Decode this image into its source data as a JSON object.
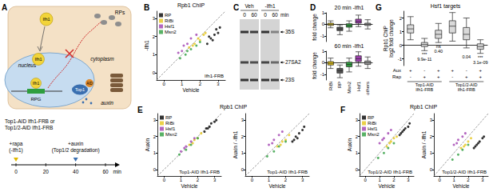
{
  "diagram": {
    "panel": "A",
    "cytoplasm": "cytoplasm",
    "nucleus": "nucleus",
    "ifh1": "Ifh1",
    "rps": "RPs",
    "rpg": "RPG",
    "aid": "AID",
    "top1": "Top1",
    "auxin": "auxin",
    "strains": [
      "Top1-AID Ifh1-FRB or",
      "Top1/2-AID Ifh1-FRB"
    ],
    "timeline": {
      "ticks": [
        0,
        20,
        40,
        60
      ],
      "unit": "min",
      "events": [
        {
          "at": 0,
          "lines": [
            "+rapa",
            "(-Ifh1)"
          ]
        },
        {
          "at": 40,
          "lines": [
            "+auxin",
            "(Top1/2 degradation)"
          ]
        }
      ]
    }
  },
  "gel": {
    "panel": "C",
    "conditions": [
      "Veh",
      "-Ifh1"
    ],
    "lanes": [
      0,
      60
    ],
    "unit": "min",
    "bands": [
      "35S",
      "27SA2",
      "23S"
    ]
  },
  "chart_data": [
    {
      "panel": "B",
      "type": "scatter",
      "title": "Rpb1 ChIP",
      "xlabel": "Vehicle",
      "ylabel": "-Ifh1",
      "annotation": "Ifh1-FRB",
      "xlim": [
        -0.4,
        3.4
      ],
      "ylim": [
        -0.4,
        3.4
      ],
      "xticks": [
        0,
        1,
        2,
        3
      ],
      "yticks": [
        0,
        1,
        2,
        3
      ],
      "legend": "top-left",
      "series": [
        {
          "name": "RP",
          "color": "#000000",
          "values": [
            [
              2.4,
              1.6
            ],
            [
              2.6,
              1.9
            ],
            [
              2.8,
              2.1
            ],
            [
              2.9,
              2.4
            ],
            [
              3.1,
              2.5
            ],
            [
              2.7,
              1.8
            ],
            [
              3.0,
              2.2
            ],
            [
              2.5,
              2.0
            ]
          ]
        },
        {
          "name": "RiBi",
          "color": "#e6c619",
          "values": [
            [
              1.4,
              1.4
            ],
            [
              1.7,
              1.6
            ],
            [
              1.9,
              1.9
            ],
            [
              2.0,
              1.8
            ],
            [
              2.2,
              2.1
            ],
            [
              1.6,
              1.5
            ],
            [
              2.3,
              2.2
            ]
          ]
        },
        {
          "name": "Hsf1",
          "color": "#a040b0",
          "values": [
            [
              0.8,
              1.1
            ],
            [
              1.1,
              1.5
            ],
            [
              1.3,
              1.6
            ],
            [
              1.5,
              1.9
            ],
            [
              1.0,
              1.2
            ],
            [
              1.8,
              2.1
            ]
          ]
        },
        {
          "name": "Msn2",
          "color": "#2e9e3e",
          "values": [
            [
              0.9,
              0.8
            ],
            [
              1.2,
              1.0
            ],
            [
              1.5,
              1.3
            ],
            [
              1.8,
              1.5
            ],
            [
              2.0,
              1.7
            ],
            [
              1.3,
              1.2
            ]
          ]
        }
      ]
    },
    {
      "panel": "D",
      "type": "boxplot",
      "title": "20 min -Ifh1",
      "ylabel": "fold change",
      "categories": [
        "RiBi",
        "RP",
        "Msn2",
        "Hsf1",
        "others"
      ],
      "values": [
        [
          -0.3,
          -0.1,
          0,
          0.1,
          0.3
        ],
        [
          -0.9,
          -0.55,
          -0.4,
          -0.25,
          -0.05
        ],
        [
          -0.6,
          -0.25,
          -0.1,
          0.05,
          0.3
        ],
        [
          -0.2,
          0.1,
          0.25,
          0.45,
          0.8
        ],
        [
          -0.4,
          -0.1,
          0,
          0.1,
          0.4
        ]
      ],
      "colors": [
        "#e6c619",
        "#555555",
        "#2e9e3e",
        "#a040b0",
        "#9e9e9e"
      ],
      "ylim": [
        -1.5,
        1
      ],
      "yticks": [
        -1,
        0,
        1
      ],
      "tick_labels": "y"
    },
    {
      "type": "boxplot",
      "title": "60 min -Ifh1",
      "ylabel": "fold change",
      "categories": [
        "RiBi",
        "RP",
        "Msn2",
        "Hsf1",
        "others"
      ],
      "values": [
        [
          -0.5,
          -0.2,
          -0.05,
          0.1,
          0.4
        ],
        [
          -1.3,
          -0.9,
          -0.7,
          -0.5,
          -0.2
        ],
        [
          -0.8,
          -0.35,
          -0.15,
          0.05,
          0.4
        ],
        [
          -0.3,
          0.1,
          0.35,
          0.6,
          0.95
        ],
        [
          -0.5,
          -0.15,
          0,
          0.15,
          0.5
        ]
      ],
      "colors": [
        "#e6c619",
        "#555555",
        "#2e9e3e",
        "#a040b0",
        "#9e9e9e"
      ],
      "ylim": [
        -1.5,
        1
      ],
      "yticks": [
        -1,
        0,
        1
      ]
    },
    {
      "panel": "G",
      "type": "boxplot",
      "title": "Hsf1 targets",
      "ylabel": [
        "Rpb1 ChIP",
        "log2 fold change"
      ],
      "categories": [
        null,
        null,
        null,
        null,
        null,
        null
      ],
      "values": [
        [
          0.4,
          0.9,
          1.2,
          1.5,
          2.1
        ],
        [
          -0.4,
          -0.1,
          0.05,
          0.2,
          0.5
        ],
        [
          0.2,
          0.5,
          0.8,
          1.1,
          1.6
        ],
        [
          0.3,
          0.9,
          1.4,
          1.8,
          2.4
        ],
        [
          -0.2,
          0.4,
          0.8,
          1.3,
          2.0
        ],
        [
          -0.6,
          -0.3,
          -0.1,
          0.1,
          0.4
        ]
      ],
      "color": "#d9d9d9",
      "ylim": [
        -1.5,
        2.5
      ],
      "yticks": [
        -1,
        0,
        1,
        2
      ],
      "tick_labels": "y",
      "significance": [
        null,
        "***",
        "ns",
        null,
        null,
        "***"
      ],
      "p_values": [
        null,
        "9.9e-11",
        "0.40",
        null,
        "0.04",
        "3.1e-09"
      ],
      "conditions": [
        {
          "label": "Aux",
          "values": [
            "+",
            "-",
            "+",
            "+",
            "-",
            "+"
          ]
        },
        {
          "label": "Rap",
          "values": [
            "-",
            "+",
            "+",
            "-",
            "+",
            "+"
          ]
        }
      ],
      "groups": [
        {
          "label": [
            "Top1-AID",
            "Ifh1-FRB"
          ],
          "from": 0,
          "to": 2
        },
        {
          "label": [
            "Top1/2-AID",
            "Ifh1-FRB"
          ],
          "from": 3,
          "to": 5
        }
      ]
    },
    {
      "panel": "E",
      "type": "scatter",
      "title": "Rpb1 ChIP",
      "xlabel": "Vehicle",
      "ylabel": "Auxin",
      "annotation": "Top1-AID Ifh1-FRB",
      "xlim": [
        -0.4,
        3.4
      ],
      "ylim": [
        -0.4,
        3.4
      ],
      "xticks": [
        0,
        1,
        2,
        3
      ],
      "yticks": [
        0,
        1,
        2,
        3
      ],
      "legend": "top-left",
      "series": [
        {
          "name": "RP",
          "color": "#000000",
          "values": [
            [
              2.4,
              2.3
            ],
            [
              2.6,
              2.5
            ],
            [
              2.8,
              2.8
            ],
            [
              3.0,
              2.9
            ],
            [
              2.7,
              2.6
            ],
            [
              3.1,
              3.0
            ],
            [
              2.5,
              2.5
            ]
          ]
        },
        {
          "name": "RiBi",
          "color": "#e6c619",
          "values": [
            [
              1.5,
              1.5
            ],
            [
              1.8,
              1.8
            ],
            [
              2.0,
              1.9
            ],
            [
              2.2,
              2.2
            ],
            [
              1.7,
              1.6
            ]
          ]
        },
        {
          "name": "Hsf1",
          "color": "#a040b0",
          "values": [
            [
              1.0,
              1.1
            ],
            [
              1.3,
              1.4
            ],
            [
              1.6,
              1.7
            ],
            [
              1.2,
              1.3
            ],
            [
              1.8,
              1.9
            ]
          ]
        },
        {
          "name": "Msn2",
          "color": "#2e9e3e",
          "values": [
            [
              0.9,
              0.9
            ],
            [
              1.3,
              1.2
            ],
            [
              1.6,
              1.5
            ],
            [
              2.0,
              1.9
            ]
          ]
        }
      ]
    },
    {
      "type": "scatter",
      "xlabel": "Vehicle",
      "ylabel": "Auxin / -Ifh1",
      "annotation": "Top1-AID Ifh1-FRB",
      "xlim": [
        -0.4,
        3.4
      ],
      "ylim": [
        -0.4,
        3.4
      ],
      "xticks": [
        0,
        1,
        2,
        3
      ],
      "yticks": [
        0,
        1,
        2,
        3
      ],
      "series": [
        {
          "name": "RP",
          "color": "#000000",
          "values": [
            [
              2.4,
              1.7
            ],
            [
              2.6,
              2.0
            ],
            [
              2.8,
              2.2
            ],
            [
              3.0,
              2.4
            ],
            [
              2.7,
              1.9
            ],
            [
              3.1,
              2.6
            ],
            [
              2.5,
              1.8
            ]
          ]
        },
        {
          "name": "RiBi",
          "color": "#e6c619",
          "values": [
            [
              1.5,
              1.4
            ],
            [
              1.8,
              1.7
            ],
            [
              2.0,
              1.8
            ],
            [
              2.2,
              2.1
            ],
            [
              1.7,
              1.5
            ]
          ]
        },
        {
          "name": "Hsf1",
          "color": "#a040b0",
          "values": [
            [
              1.0,
              1.5
            ],
            [
              1.3,
              1.8
            ],
            [
              1.6,
              2.1
            ],
            [
              1.2,
              1.6
            ],
            [
              1.8,
              2.3
            ]
          ]
        },
        {
          "name": "Msn2",
          "color": "#2e9e3e",
          "values": [
            [
              0.9,
              0.8
            ],
            [
              1.3,
              1.1
            ],
            [
              1.6,
              1.4
            ],
            [
              2.0,
              1.7
            ]
          ]
        }
      ]
    },
    {
      "panel": "F",
      "type": "scatter",
      "title": "Rpb1 ChIP",
      "xlabel": "Vehicle",
      "ylabel": "Auxin",
      "annotation": "Top1/2-AID Ifh1-FRB",
      "xlim": [
        -0.4,
        3.4
      ],
      "ylim": [
        -0.4,
        3.4
      ],
      "xticks": [
        0,
        1,
        2,
        3
      ],
      "yticks": [
        0,
        1,
        2,
        3
      ],
      "legend": "top-left",
      "series": [
        {
          "name": "RP",
          "color": "#000000",
          "values": [
            [
              2.4,
              2.1
            ],
            [
              2.6,
              2.3
            ],
            [
              2.8,
              2.5
            ],
            [
              3.0,
              2.6
            ],
            [
              2.7,
              2.4
            ],
            [
              3.1,
              2.8
            ],
            [
              2.5,
              2.2
            ]
          ]
        },
        {
          "name": "RiBi",
          "color": "#e6c619",
          "values": [
            [
              1.5,
              1.4
            ],
            [
              1.8,
              1.7
            ],
            [
              2.0,
              1.9
            ],
            [
              2.2,
              2.0
            ],
            [
              1.7,
              1.6
            ]
          ]
        },
        {
          "name": "Hsf1",
          "color": "#a040b0",
          "values": [
            [
              1.0,
              1.6
            ],
            [
              1.3,
              1.9
            ],
            [
              1.6,
              2.2
            ],
            [
              1.2,
              1.8
            ],
            [
              1.8,
              2.4
            ]
          ]
        },
        {
          "name": "Msn2",
          "color": "#2e9e3e",
          "values": [
            [
              0.9,
              0.7
            ],
            [
              1.3,
              1.0
            ],
            [
              1.6,
              1.3
            ],
            [
              2.0,
              1.6
            ]
          ]
        }
      ]
    },
    {
      "type": "scatter",
      "xlabel": "Vehicle",
      "ylabel": "Auxin / -Ifh1",
      "annotation": "Top1/2-AID Ifh1-FRB",
      "xlim": [
        -0.4,
        3.4
      ],
      "ylim": [
        -0.4,
        3.4
      ],
      "xticks": [
        0,
        1,
        2,
        3
      ],
      "yticks": [
        0,
        1,
        2,
        3
      ],
      "series": [
        {
          "name": "RP",
          "color": "#000000",
          "values": [
            [
              2.4,
              1.3
            ],
            [
              2.6,
              1.5
            ],
            [
              2.8,
              1.7
            ],
            [
              3.0,
              1.9
            ],
            [
              2.7,
              1.6
            ],
            [
              3.1,
              2.0
            ],
            [
              2.5,
              1.4
            ]
          ]
        },
        {
          "name": "RiBi",
          "color": "#e6c619",
          "values": [
            [
              1.5,
              1.3
            ],
            [
              1.8,
              1.5
            ],
            [
              2.0,
              1.7
            ],
            [
              2.2,
              1.9
            ],
            [
              1.7,
              1.4
            ]
          ]
        },
        {
          "name": "Hsf1",
          "color": "#a040b0",
          "values": [
            [
              1.0,
              1.5
            ],
            [
              1.3,
              1.8
            ],
            [
              1.6,
              2.0
            ],
            [
              1.2,
              1.6
            ],
            [
              1.8,
              2.2
            ]
          ]
        },
        {
          "name": "Msn2",
          "color": "#2e9e3e",
          "values": [
            [
              0.9,
              0.6
            ],
            [
              1.3,
              0.9
            ],
            [
              1.6,
              1.2
            ],
            [
              2.0,
              1.5
            ]
          ]
        }
      ]
    }
  ]
}
